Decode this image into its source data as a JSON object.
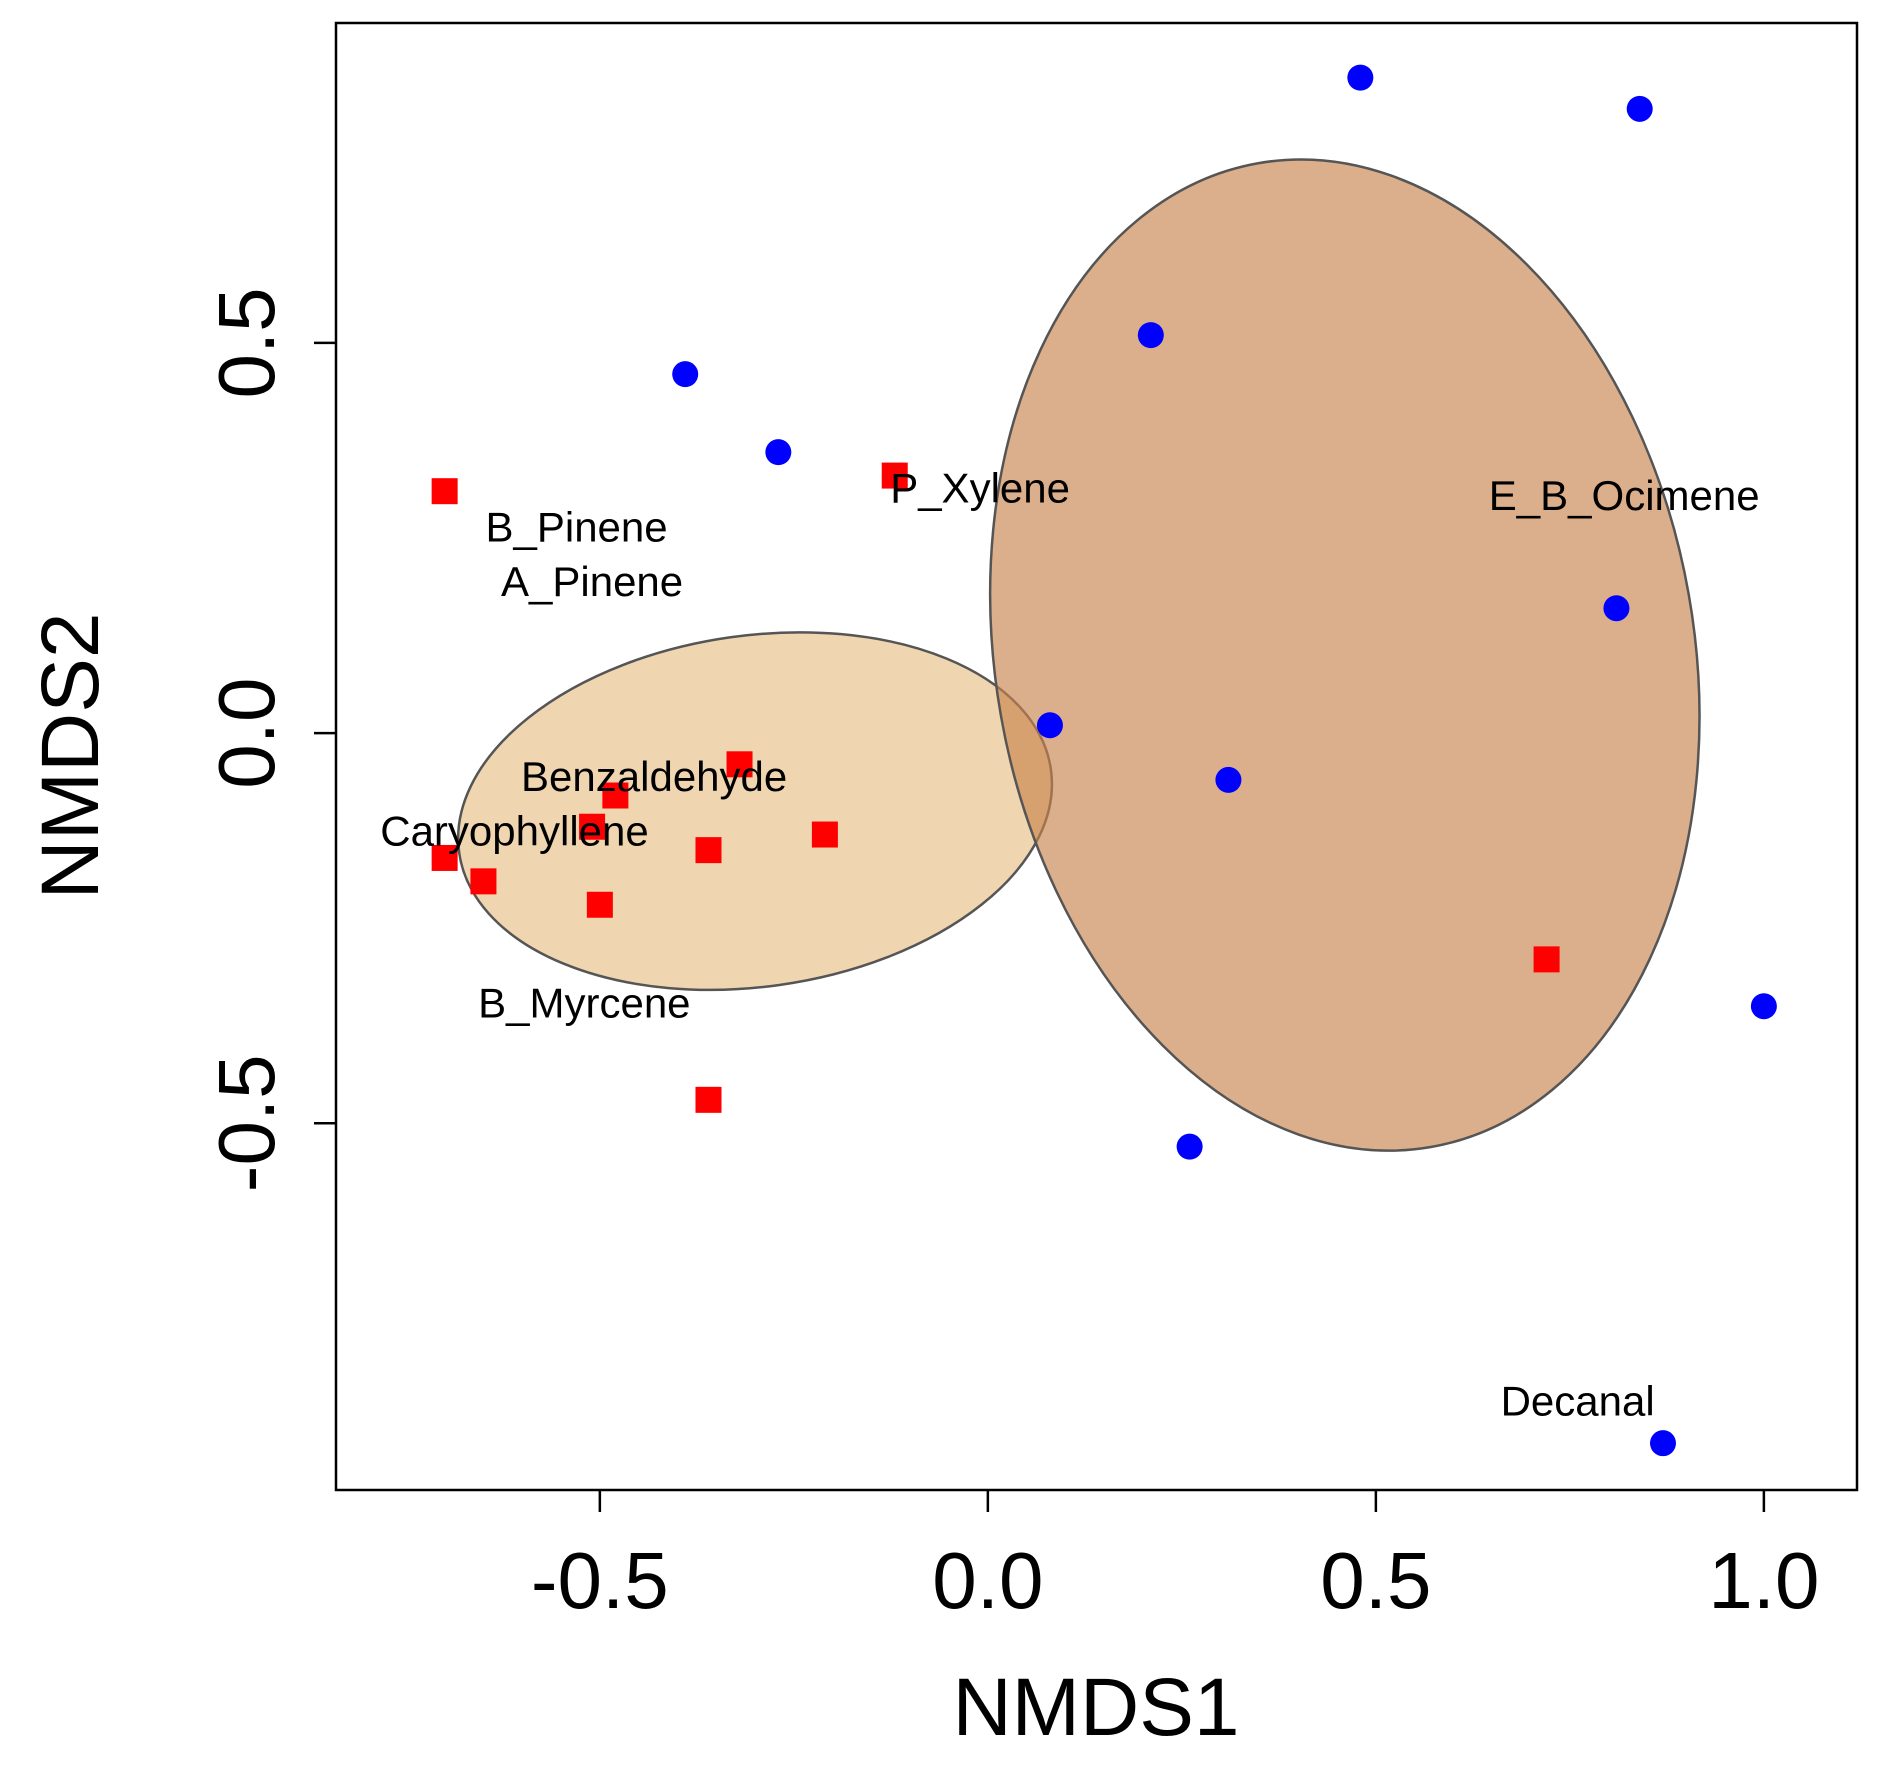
{
  "chart_data": {
    "type": "scatter",
    "xlabel": "NMDS1",
    "ylabel": "NMDS2",
    "xlim": [
      -0.84,
      1.12
    ],
    "ylim": [
      -0.97,
      0.91
    ],
    "x_ticks": [
      -0.5,
      0.0,
      0.5,
      1.0
    ],
    "x_tick_labels": [
      "-0.5",
      "0.0",
      "0.5",
      "1.0"
    ],
    "y_ticks": [
      -0.5,
      0.0,
      0.5
    ],
    "y_tick_labels": [
      "-0.5",
      "0.0",
      "0.5"
    ],
    "grid": false,
    "colors": {
      "group_red": "#ff0000",
      "group_blue": "#0000ff",
      "ellipse_light": "#e8c48e",
      "ellipse_dark": "#c8844d",
      "ellipse_stroke": "#555555"
    },
    "series": [
      {
        "name": "red-squares",
        "marker": "square",
        "color": "#ff0000",
        "points": [
          {
            "x": -0.7,
            "y": 0.31
          },
          {
            "x": -0.12,
            "y": 0.33
          },
          {
            "x": -0.32,
            "y": -0.04
          },
          {
            "x": -0.48,
            "y": -0.08
          },
          {
            "x": -0.51,
            "y": -0.12
          },
          {
            "x": -0.7,
            "y": -0.16
          },
          {
            "x": -0.65,
            "y": -0.19
          },
          {
            "x": -0.36,
            "y": -0.15
          },
          {
            "x": -0.21,
            "y": -0.13
          },
          {
            "x": -0.5,
            "y": -0.22
          },
          {
            "x": -0.36,
            "y": -0.47
          },
          {
            "x": 0.72,
            "y": -0.29
          }
        ]
      },
      {
        "name": "blue-circles",
        "marker": "circle",
        "color": "#0000ff",
        "points": [
          {
            "x": 0.48,
            "y": 0.84
          },
          {
            "x": 0.84,
            "y": 0.8
          },
          {
            "x": 0.21,
            "y": 0.51
          },
          {
            "x": -0.39,
            "y": 0.46
          },
          {
            "x": -0.27,
            "y": 0.36
          },
          {
            "x": 0.81,
            "y": 0.16
          },
          {
            "x": 0.08,
            "y": 0.01
          },
          {
            "x": 0.31,
            "y": -0.06
          },
          {
            "x": 1.0,
            "y": -0.35
          },
          {
            "x": 0.26,
            "y": -0.53
          },
          {
            "x": 0.87,
            "y": -0.91
          }
        ]
      }
    ],
    "ellipses": [
      {
        "name": "red-group-ellipse",
        "cx": -0.3,
        "cy": -0.1,
        "rx": 0.385,
        "ry": 0.225,
        "angle_deg": -8,
        "color": "#e8c48e",
        "opacity": 0.7
      },
      {
        "name": "blue-group-ellipse",
        "cx": 0.46,
        "cy": 0.1,
        "rx": 0.45,
        "ry": 0.64,
        "angle_deg": -10,
        "color": "#c8844d",
        "opacity": 0.65
      }
    ],
    "annotations": [
      {
        "text": "P_Xylene",
        "x": -0.01,
        "y": 0.31
      },
      {
        "text": "E_B_Ocimene",
        "x": 0.82,
        "y": 0.3
      },
      {
        "text": "B_Pinene",
        "x": -0.53,
        "y": 0.26
      },
      {
        "text": "A_Pinene",
        "x": -0.51,
        "y": 0.19
      },
      {
        "text": "Benzaldehyde",
        "x": -0.43,
        "y": -0.06
      },
      {
        "text": "Caryophyllene",
        "x": -0.61,
        "y": -0.13
      },
      {
        "text": "B_Myrcene",
        "x": -0.52,
        "y": -0.35
      },
      {
        "text": "Decanal",
        "x": 0.76,
        "y": -0.86
      }
    ]
  }
}
